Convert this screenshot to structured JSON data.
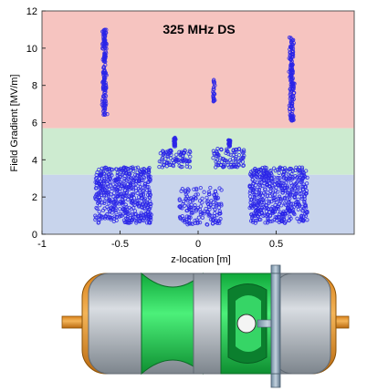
{
  "chart_data": {
    "type": "scatter",
    "title": "325 MHz DS",
    "xlabel": "z-location [m]",
    "ylabel": "Field Gradient [MV/m]",
    "xlim": [
      -1,
      1
    ],
    "ylim": [
      0,
      12
    ],
    "xticks": [
      "-1",
      "-0.5",
      "0",
      "0.5"
    ],
    "yticks": [
      "0",
      "2",
      "4",
      "6",
      "8",
      "10",
      "12"
    ],
    "grid": false,
    "marker_color": "#2a24e8",
    "bands": [
      {
        "from": 0,
        "to": 3.2,
        "color": "#c8d4ec"
      },
      {
        "from": 3.2,
        "to": 5.7,
        "color": "#cdebd0"
      },
      {
        "from": 5.7,
        "to": 12,
        "color": "#f6c4c0"
      }
    ],
    "clusters": [
      {
        "x_center": -0.6,
        "x_spread": 0.02,
        "y_min": 6.4,
        "y_max": 11.0,
        "density": "high"
      },
      {
        "x_center": 0.6,
        "x_spread": 0.02,
        "y_min": 6.1,
        "y_max": 10.7,
        "density": "high"
      },
      {
        "x_center": 0.1,
        "x_spread": 0.01,
        "y_min": 7.1,
        "y_max": 8.3,
        "density": "low"
      },
      {
        "x_min": -0.25,
        "x_max": -0.05,
        "y_min": 3.6,
        "y_max": 4.6,
        "density": "medium"
      },
      {
        "x_min": 0.09,
        "x_max": 0.3,
        "y_min": 3.6,
        "y_max": 4.6,
        "density": "medium"
      },
      {
        "x_center": -0.15,
        "x_spread": 0.01,
        "y_min": 4.7,
        "y_max": 5.2,
        "density": "low"
      },
      {
        "x_center": 0.2,
        "x_spread": 0.01,
        "y_min": 4.7,
        "y_max": 5.1,
        "density": "low"
      },
      {
        "x_min": -0.66,
        "x_max": -0.3,
        "y_min": 0.6,
        "y_max": 3.6,
        "density": "very high"
      },
      {
        "x_min": 0.33,
        "x_max": 0.7,
        "y_min": 0.6,
        "y_max": 3.6,
        "density": "very high"
      },
      {
        "x_min": -0.12,
        "x_max": 0.15,
        "y_min": 0.5,
        "y_max": 2.5,
        "density": "high"
      }
    ]
  }
}
